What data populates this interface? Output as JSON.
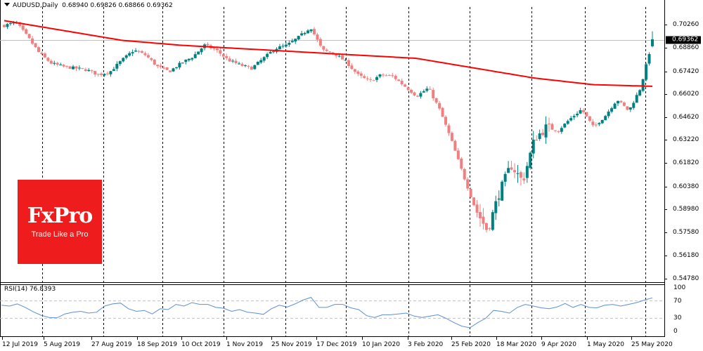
{
  "header": {
    "symbol": "AUDUSD",
    "timeframe": "Daily",
    "ohlc": "0.68940 0.69826 0.68866 0.69362"
  },
  "rsi": {
    "label": "RSI(14) 76.8393",
    "levels": [
      "100",
      "70",
      "30",
      "0"
    ]
  },
  "price_axis": {
    "ticks": [
      "0.70260",
      "0.68860",
      "0.67420",
      "0.66020",
      "0.64620",
      "0.63220",
      "0.61820",
      "0.60380",
      "0.58980",
      "0.57580",
      "0.56180",
      "0.54780"
    ],
    "current_price": "0.69362"
  },
  "time_axis": {
    "labels": [
      "12 Jul 2019",
      "5 Aug 2019",
      "27 Aug 2019",
      "18 Sep 2019",
      "10 Oct 2019",
      "1 Nov 2019",
      "25 Nov 2019",
      "17 Dec 2019",
      "10 Jan 2020",
      "3 Feb 2020",
      "25 Feb 2020",
      "18 Mar 2020",
      "9 Apr 2020",
      "1 May 2020",
      "25 May 2020"
    ]
  },
  "logo": {
    "brand": "FxPro",
    "tagline": "Trade Like a Pro"
  },
  "colors": {
    "bull": "#008080",
    "bear": "#f08080",
    "ma": "#ff0000",
    "rsi_line": "#5b8ed8",
    "logo_bg": "#ee1c1c"
  },
  "chart_data": [
    {
      "type": "candlestick",
      "title": "AUDUSD Daily",
      "ylim": [
        0.5478,
        0.707
      ],
      "grid": false,
      "x_labels": [
        "12 Jul 2019",
        "5 Aug 2019",
        "27 Aug 2019",
        "18 Sep 2019",
        "10 Oct 2019",
        "1 Nov 2019",
        "25 Nov 2019",
        "17 Dec 2019",
        "10 Jan 2020",
        "3 Feb 2020",
        "25 Feb 2020",
        "18 Mar 2020",
        "9 Apr 2020",
        "1 May 2020",
        "25 May 2020"
      ],
      "series": [
        {
          "name": "AUDUSD close (approx, per ~5 days)",
          "values": [
            0.702,
            0.704,
            0.695,
            0.685,
            0.679,
            0.677,
            0.676,
            0.675,
            0.672,
            0.674,
            0.681,
            0.687,
            0.684,
            0.677,
            0.674,
            0.679,
            0.683,
            0.69,
            0.687,
            0.681,
            0.678,
            0.676,
            0.682,
            0.688,
            0.69,
            0.695,
            0.701,
            0.687,
            0.685,
            0.68,
            0.672,
            0.668,
            0.672,
            0.671,
            0.665,
            0.659,
            0.664,
            0.65,
            0.631,
            0.61,
            0.59,
            0.577,
            0.6,
            0.617,
            0.607,
            0.633,
            0.64,
            0.638,
            0.645,
            0.651,
            0.64,
            0.647,
            0.657,
            0.65,
            0.664,
            0.693
          ]
        },
        {
          "name": "MA (red)",
          "values": [
            0.705,
            0.699,
            0.693,
            0.69,
            0.688,
            0.686,
            0.684,
            0.682,
            0.676,
            0.67,
            0.666,
            0.665
          ]
        }
      ],
      "current_price": 0.69362,
      "ohlc_last": {
        "open": 0.6894,
        "high": 0.69826,
        "low": 0.68866,
        "close": 0.69362
      }
    },
    {
      "type": "line",
      "title": "RSI(14) 76.8393",
      "ylim": [
        0,
        100
      ],
      "levels": [
        70,
        30
      ],
      "series": [
        {
          "name": "RSI(14)",
          "values": [
            60,
            58,
            63,
            55,
            45,
            37,
            32,
            31,
            40,
            44,
            46,
            42,
            44,
            58,
            63,
            65,
            52,
            46,
            48,
            40,
            52,
            50,
            62,
            58,
            66,
            62,
            62,
            55,
            53,
            46,
            50,
            44,
            42,
            39,
            52,
            60,
            56,
            63,
            72,
            78,
            55,
            55,
            62,
            62,
            54,
            50,
            36,
            32,
            38,
            38,
            40,
            42,
            35,
            32,
            35,
            38,
            30,
            20,
            12,
            8,
            20,
            30,
            48,
            46,
            42,
            55,
            62,
            58,
            54,
            52,
            56,
            64,
            55,
            62,
            55,
            54,
            60,
            62,
            58,
            62,
            66,
            72,
            77
          ]
        }
      ],
      "last_value": 76.8393
    }
  ]
}
